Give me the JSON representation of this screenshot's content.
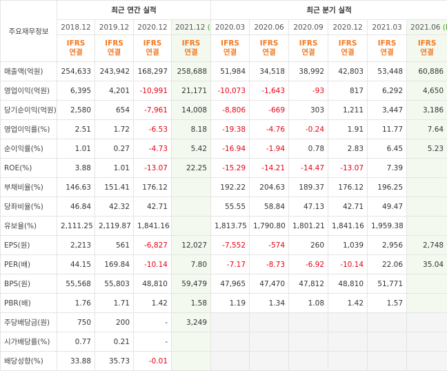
{
  "table": {
    "corner": "주요재무정보",
    "groups": [
      "최근 연간 실적",
      "최근 분기 실적"
    ],
    "columns": [
      {
        "date": "2018.12",
        "standard": "IFRS",
        "basis": "연결"
      },
      {
        "date": "2019.12",
        "standard": "IFRS",
        "basis": "연결"
      },
      {
        "date": "2020.12",
        "standard": "IFRS",
        "basis": "연결"
      },
      {
        "date": "2021.12",
        "est": "(E)",
        "standard": "IFRS",
        "basis": "연결"
      },
      {
        "date": "2020.03",
        "standard": "IFRS",
        "basis": "연결"
      },
      {
        "date": "2020.06",
        "standard": "IFRS",
        "basis": "연결"
      },
      {
        "date": "2020.09",
        "standard": "IFRS",
        "basis": "연결"
      },
      {
        "date": "2020.12",
        "standard": "IFRS",
        "basis": "연결"
      },
      {
        "date": "2021.03",
        "standard": "IFRS",
        "basis": "연결"
      },
      {
        "date": "2021.06",
        "est": "(E)",
        "standard": "IFRS",
        "basis": "연결"
      }
    ],
    "rows": [
      {
        "label": "매출액(억원)",
        "cells": [
          "254,633",
          "243,942",
          "168,297",
          "258,688",
          "51,984",
          "34,518",
          "38,992",
          "42,803",
          "53,448",
          "60,886"
        ]
      },
      {
        "label": "영업이익(억원)",
        "cells": [
          "6,395",
          "4,201",
          "-10,991",
          "21,171",
          "-10,073",
          "-1,643",
          "-93",
          "817",
          "6,292",
          "4,650"
        ]
      },
      {
        "label": "당기순이익(억원)",
        "cells": [
          "2,580",
          "654",
          "-7,961",
          "14,008",
          "-8,806",
          "-669",
          "303",
          "1,211",
          "3,447",
          "3,186"
        ]
      },
      {
        "label": "영업이익률(%)",
        "cells": [
          "2.51",
          "1.72",
          "-6.53",
          "8.18",
          "-19.38",
          "-4.76",
          "-0.24",
          "1.91",
          "11.77",
          "7.64"
        ]
      },
      {
        "label": "순이익률(%)",
        "cells": [
          "1.01",
          "0.27",
          "-4.73",
          "5.42",
          "-16.94",
          "-1.94",
          "0.78",
          "2.83",
          "6.45",
          "5.23"
        ]
      },
      {
        "label": "ROE(%)",
        "cells": [
          "3.88",
          "1.01",
          "-13.07",
          "22.25",
          "-15.29",
          "-14.21",
          "-14.47",
          "-13.07",
          "7.39",
          null
        ]
      },
      {
        "label": "부채비율(%)",
        "cells": [
          "146.63",
          "151.41",
          "176.12",
          null,
          "192.22",
          "204.63",
          "189.37",
          "176.12",
          "196.25",
          null
        ]
      },
      {
        "label": "당좌비율(%)",
        "cells": [
          "46.84",
          "42.32",
          "42.71",
          null,
          "55.55",
          "58.84",
          "47.13",
          "42.71",
          "49.47",
          null
        ]
      },
      {
        "label": "유보율(%)",
        "cells": [
          "2,111.25",
          "2,119.87",
          "1,841.16",
          null,
          "1,813.75",
          "1,790.80",
          "1,801.21",
          "1,841.16",
          "1,959.38",
          null
        ]
      },
      {
        "label": "EPS(원)",
        "cells": [
          "2,213",
          "561",
          "-6,827",
          "12,027",
          "-7,552",
          "-574",
          "260",
          "1,039",
          "2,956",
          "2,748"
        ]
      },
      {
        "label": "PER(배)",
        "cells": [
          "44.15",
          "169.84",
          "-10.14",
          "7.80",
          "-7.17",
          "-8.73",
          "-6.92",
          "-10.14",
          "22.06",
          "35.04"
        ]
      },
      {
        "label": "BPS(원)",
        "cells": [
          "55,568",
          "55,803",
          "48,810",
          "59,479",
          "47,965",
          "47,470",
          "47,812",
          "48,810",
          "51,771",
          null
        ]
      },
      {
        "label": "PBR(배)",
        "cells": [
          "1.76",
          "1.71",
          "1.42",
          "1.58",
          "1.19",
          "1.34",
          "1.08",
          "1.42",
          "1.57",
          null
        ]
      },
      {
        "label": "주당배당금(원)",
        "cells": [
          "750",
          "200",
          "-",
          "3,249",
          null,
          null,
          null,
          null,
          null,
          null
        ]
      },
      {
        "label": "시가배당률(%)",
        "cells": [
          "0.77",
          "0.21",
          "-",
          null,
          null,
          null,
          null,
          null,
          null,
          null
        ]
      },
      {
        "label": "배당성향(%)",
        "cells": [
          "33.88",
          "35.73",
          "-0.01",
          null,
          null,
          null,
          null,
          null,
          null,
          null
        ]
      }
    ]
  }
}
